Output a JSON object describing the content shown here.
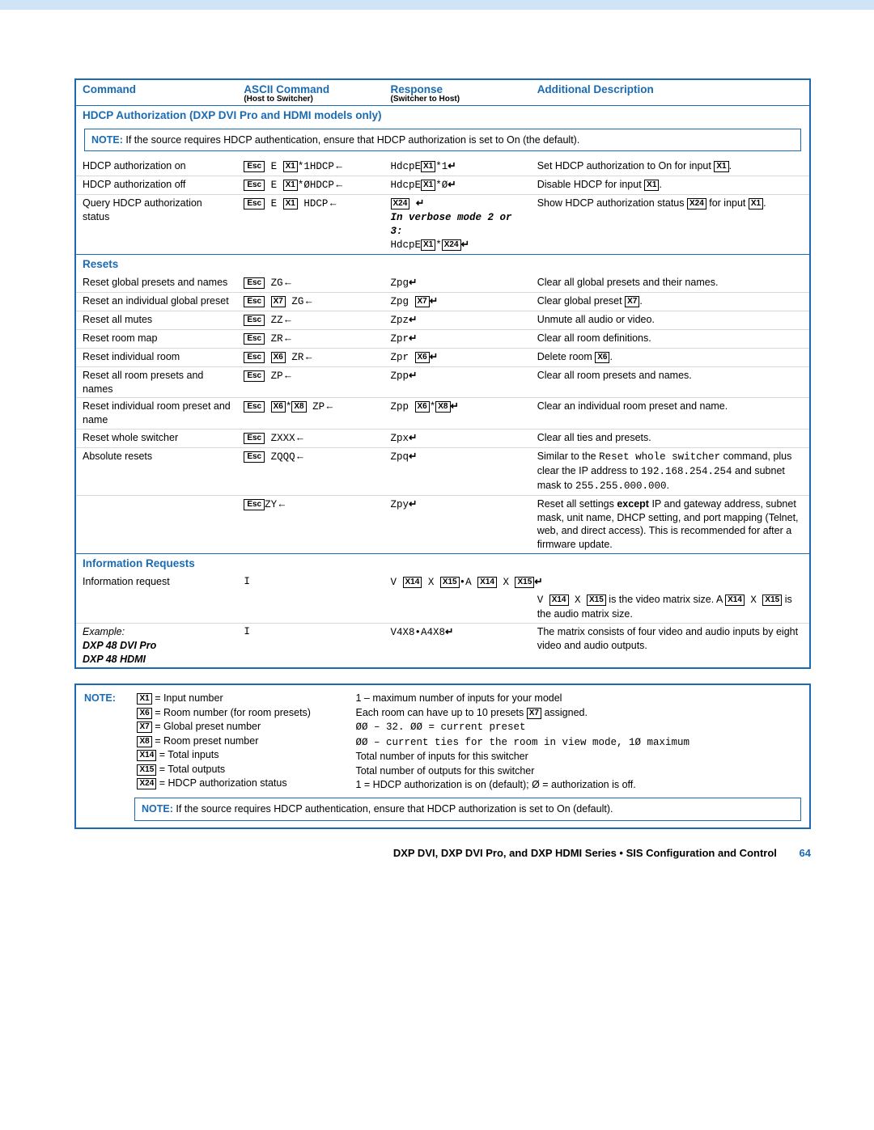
{
  "colors": {
    "brand": "#1a6bb3",
    "stripe": "#cfe5f7",
    "rule": "#d8d8d8"
  },
  "symbols": {
    "enter": "←",
    "return": "↵",
    "bullet": "•",
    "dash": "–",
    "esc": "Esc"
  },
  "header": {
    "c1": "Command",
    "c2": "ASCII Command",
    "c2_sub": "(Host to Switcher)",
    "c3": "Response",
    "c3_sub": "(Switcher to Host)",
    "c4": "Additional Description"
  },
  "sections": {
    "hdcp": {
      "title": "HDCP Authorization (DXP DVI Pro and HDMI models only)",
      "note": "If the source requires HDCP authentication, ensure that HDCP authorization is set to On (the default).",
      "rows": {
        "on": {
          "cmd": "HDCP authorization on",
          "ascii": {
            "pre": " E ",
            "var": "X1",
            "post": "*1HDCP"
          },
          "resp": {
            "pre": "HdcpE",
            "var": "X1",
            "post": "*1"
          },
          "desc_pre": "Set HDCP authorization to On for input ",
          "desc_var": "X1",
          "desc_post": "."
        },
        "off": {
          "cmd": "HDCP authorization off",
          "ascii": {
            "pre": " E ",
            "var": "X1",
            "post": "*ØHDCP"
          },
          "resp": {
            "pre": "HdcpE",
            "var": "X1",
            "post": "*Ø"
          },
          "desc_pre": "Disable HDCP for input ",
          "desc_var": "X1",
          "desc_post": "."
        },
        "q": {
          "cmd": "Query HDCP authorization status",
          "ascii": {
            "pre": " E ",
            "var": "X1",
            "post": " HDCP"
          },
          "resp1_var": "X24",
          "verbose": "In verbose mode 2 or 3:",
          "resp2": {
            "pre": "HdcpE",
            "v1": "X1",
            "mid": "*",
            "v2": "X24"
          },
          "desc_pre": "Show HDCP authorization status ",
          "desc_v1": "X24",
          "desc_mid": " for input ",
          "desc_v2": "X1",
          "desc_post": "."
        }
      }
    },
    "resets": {
      "title": "Resets",
      "rows": {
        "rgp": {
          "cmd": "Reset global presets and names",
          "a": " ZG",
          "r": "Zpg",
          "desc": "Clear all global presets and their names."
        },
        "rig": {
          "cmd": "Reset an individual global preset",
          "a_pre": " ",
          "a_var": "X7",
          "a_post": " ZG",
          "r_pre": "Zpg ",
          "r_var": "X7",
          "desc_pre": "Clear global preset ",
          "desc_var": "X7",
          "desc_post": "."
        },
        "ram": {
          "cmd": "Reset all mutes",
          "a": " ZZ",
          "r": "Zpz",
          "desc": "Unmute all audio or video."
        },
        "rrm": {
          "cmd": "Reset room map",
          "a": " ZR",
          "r": "Zpr",
          "desc": "Clear all room definitions."
        },
        "rir": {
          "cmd": "Reset individual room",
          "a_pre": " ",
          "a_var": "X6",
          "a_post": " ZR",
          "r_pre": "Zpr ",
          "r_var": "X6",
          "desc_pre": "Delete room ",
          "desc_var": "X6",
          "desc_post": "."
        },
        "rarp": {
          "cmd": "Reset all room presets and names",
          "a": " ZP",
          "r": "Zpp",
          "desc": "Clear all room presets and names."
        },
        "rirp": {
          "cmd": "Reset individual room preset and name",
          "a_pre": " ",
          "a_v1": "X6",
          "a_mid": "*",
          "a_v2": "X8",
          "a_post": " ZP",
          "r_pre": "Zpp ",
          "r_v1": "X6",
          "r_mid": "*",
          "r_v2": "X8",
          "desc": "Clear an individual room preset and name."
        },
        "rws": {
          "cmd": "Reset whole switcher",
          "a": " ZXXX",
          "r": "Zpx",
          "desc": "Clear all ties and presets."
        },
        "abs": {
          "cmd": "Absolute resets",
          "a": " ZQQQ",
          "r": "Zpq",
          "desc_pre": "Similar to the ",
          "desc_m1": "Reset whole switcher",
          "desc_mid": " command, plus clear the IP address to ",
          "desc_m2": "192.168.254.254",
          "desc_mid2": " and subnet mask to ",
          "desc_m3": "255.255.000.000",
          "desc_post": "."
        },
        "zy": {
          "cmd": "",
          "a": "ZY",
          "r": "Zpy",
          "desc_pre": "Reset all settings ",
          "desc_b": "except",
          "desc_post": " IP and gateway address, subnet mask, unit name, DHCP setting, and port mapping (Telnet, web, and direct access). This is recommended for after a firmware update."
        }
      }
    },
    "info": {
      "title": "Information Requests",
      "rows": {
        "ir": {
          "cmd": "Information request",
          "a": "I",
          "r_pre": "V ",
          "r_v1": "X14",
          "r_m1": " X ",
          "r_v2": "X15",
          "r_bul": "•",
          "r_m2": "A ",
          "r_v3": "X14",
          "r_m3": " X ",
          "r_v4": "X15",
          "desc_pre": "V ",
          "d_v1": "X14",
          "d_m1": " X ",
          "d_v2": "X15",
          "d_mid": " is the video matrix size. A ",
          "d_v3": "X14",
          "d_m2": " X ",
          "d_v4": "X15",
          "d_post": " is the audio matrix size."
        },
        "ex": {
          "cmd_pre": "Example:",
          "cmd_l2": "DXP 48 DVI Pro",
          "cmd_l3": "DXP 48 HDMI",
          "a": "I",
          "r": "V4X8•A4X8",
          "desc": "The matrix consists of four video and audio inputs by eight video and audio outputs."
        }
      }
    }
  },
  "bottom_note": {
    "label": "NOTE:",
    "left": {
      "l1": {
        "v": "X1",
        "t": " = Input number"
      },
      "l2": {
        "v": "X6",
        "t": " = Room number (for room presets)"
      },
      "l3": {
        "v": "X7",
        "t": " = Global preset number"
      },
      "l4": {
        "v": "X8",
        "t": " = Room preset number"
      },
      "l5": {
        "v": "X14",
        "t": " = Total inputs"
      },
      "l6": {
        "v": "X15",
        "t": " = Total outputs"
      },
      "l7": {
        "v": "X24",
        "t": " = HDCP authorization status"
      }
    },
    "right": {
      "l1": "1 – maximum number of inputs for your model",
      "l2_pre": "Each room can have up to 10 presets ",
      "l2_v": "X7",
      "l2_post": " assigned.",
      "l3": "ØØ – 32. ØØ = current preset",
      "l4": "ØØ – current ties for the room in view mode, 1Ø maximum",
      "l5": "Total number of inputs for this switcher",
      "l6": "Total number of outputs for this switcher",
      "l7": "1 = HDCP authorization is on (default); Ø = authorization is off."
    },
    "note": "If the source requires HDCP authentication, ensure that HDCP authorization is set to On (default)."
  },
  "footer": {
    "text": "DXP DVI, DXP DVI Pro, and DXP HDMI Series • SIS Configuration and Control",
    "page": "64"
  }
}
